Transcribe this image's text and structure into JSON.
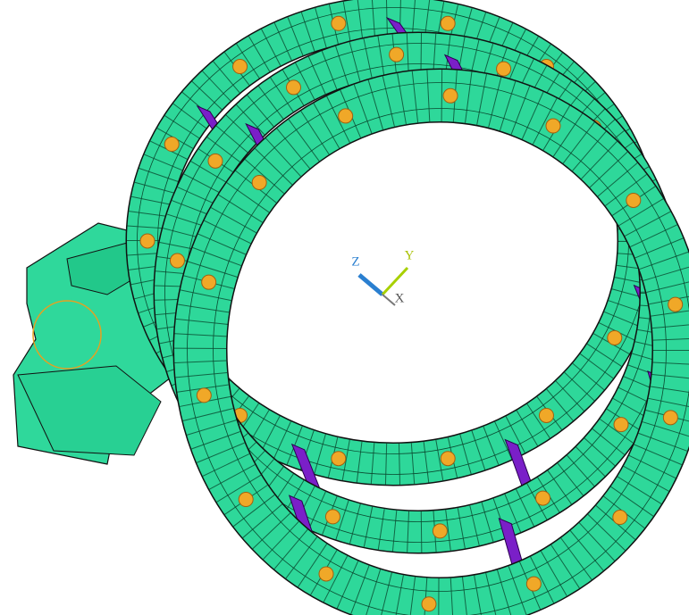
{
  "triad": {
    "z": "Z",
    "y": "Y",
    "x": "X"
  }
}
